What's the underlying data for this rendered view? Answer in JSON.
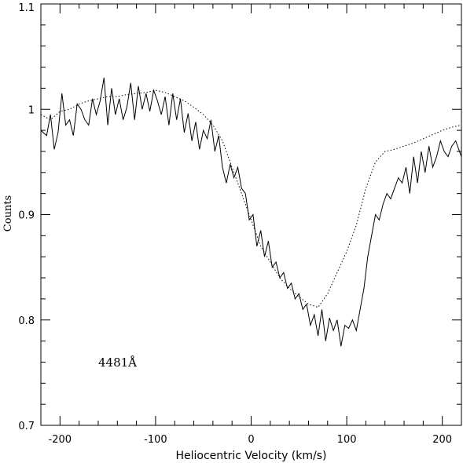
{
  "chart_data": {
    "type": "line",
    "title": "",
    "xlabel": "Heliocentric Velocity (km/s)",
    "ylabel": "Counts",
    "xlim": [
      -220,
      220
    ],
    "ylim": [
      0.7,
      1.1
    ],
    "x_ticks": [
      -200,
      -100,
      0,
      100,
      200
    ],
    "x_tick_labels": [
      "-200",
      "-100",
      "0",
      "100",
      "200"
    ],
    "y_ticks": [
      0.7,
      0.8,
      0.9,
      1.0,
      1.1
    ],
    "y_tick_labels": [
      "0.7",
      "0.8",
      "0.9",
      "1",
      "1.1"
    ],
    "grid": false,
    "annotation": "4481Å",
    "series": [
      {
        "style": "solid",
        "color": "#000000",
        "x": [
          -220,
          -214,
          -210,
          -206,
          -202,
          -198,
          -194,
          -190,
          -186,
          -182,
          -178,
          -174,
          -170,
          -166,
          -162,
          -158,
          -154,
          -150,
          -146,
          -142,
          -138,
          -134,
          -130,
          -126,
          -122,
          -118,
          -114,
          -110,
          -106,
          -102,
          -98,
          -94,
          -90,
          -86,
          -82,
          -78,
          -74,
          -70,
          -66,
          -62,
          -58,
          -54,
          -50,
          -46,
          -42,
          -38,
          -34,
          -30,
          -26,
          -22,
          -18,
          -14,
          -10,
          -6,
          -2,
          2,
          6,
          10,
          14,
          18,
          22,
          26,
          30,
          34,
          38,
          42,
          46,
          50,
          54,
          58,
          62,
          66,
          70,
          74,
          78,
          82,
          86,
          90,
          94,
          98,
          102,
          106,
          110,
          114,
          118,
          122,
          126,
          130,
          134,
          138,
          142,
          146,
          150,
          154,
          158,
          162,
          166,
          170,
          174,
          178,
          182,
          186,
          190,
          194,
          198,
          202,
          206,
          210,
          214,
          220
        ],
        "y": [
          0.98,
          0.975,
          0.995,
          0.962,
          0.978,
          1.015,
          0.985,
          0.99,
          0.975,
          1.005,
          1.0,
          0.99,
          0.985,
          1.01,
          0.995,
          1.008,
          1.03,
          0.985,
          1.02,
          0.995,
          1.01,
          0.99,
          1.002,
          1.025,
          0.99,
          1.022,
          1.0,
          1.015,
          0.998,
          1.018,
          1.008,
          0.995,
          1.012,
          0.985,
          1.015,
          0.99,
          1.01,
          0.978,
          0.996,
          0.97,
          0.988,
          0.962,
          0.98,
          0.972,
          0.99,
          0.96,
          0.975,
          0.945,
          0.93,
          0.948,
          0.935,
          0.945,
          0.925,
          0.92,
          0.895,
          0.9,
          0.87,
          0.885,
          0.86,
          0.875,
          0.85,
          0.855,
          0.84,
          0.845,
          0.83,
          0.835,
          0.82,
          0.825,
          0.81,
          0.815,
          0.795,
          0.805,
          0.785,
          0.81,
          0.78,
          0.802,
          0.79,
          0.8,
          0.775,
          0.795,
          0.792,
          0.8,
          0.79,
          0.81,
          0.83,
          0.86,
          0.88,
          0.9,
          0.895,
          0.91,
          0.92,
          0.915,
          0.925,
          0.935,
          0.93,
          0.945,
          0.92,
          0.955,
          0.93,
          0.96,
          0.94,
          0.965,
          0.945,
          0.955,
          0.97,
          0.96,
          0.955,
          0.965,
          0.97,
          0.955
        ]
      },
      {
        "style": "dotted",
        "color": "#000000",
        "x": [
          -220,
          -210,
          -200,
          -190,
          -180,
          -170,
          -160,
          -150,
          -140,
          -130,
          -120,
          -110,
          -100,
          -90,
          -80,
          -70,
          -60,
          -50,
          -40,
          -30,
          -20,
          -10,
          0,
          10,
          20,
          30,
          40,
          50,
          60,
          70,
          80,
          90,
          100,
          110,
          120,
          130,
          140,
          150,
          160,
          170,
          180,
          190,
          200,
          210,
          220
        ],
        "y": [
          0.995,
          0.99,
          0.998,
          1.0,
          1.005,
          1.008,
          1.01,
          1.012,
          1.012,
          1.014,
          1.015,
          1.016,
          1.018,
          1.016,
          1.012,
          1.008,
          1.002,
          0.995,
          0.985,
          0.97,
          0.945,
          0.92,
          0.895,
          0.87,
          0.855,
          0.84,
          0.83,
          0.822,
          0.815,
          0.812,
          0.825,
          0.845,
          0.865,
          0.89,
          0.925,
          0.95,
          0.96,
          0.962,
          0.965,
          0.968,
          0.972,
          0.976,
          0.98,
          0.983,
          0.985
        ]
      }
    ]
  }
}
